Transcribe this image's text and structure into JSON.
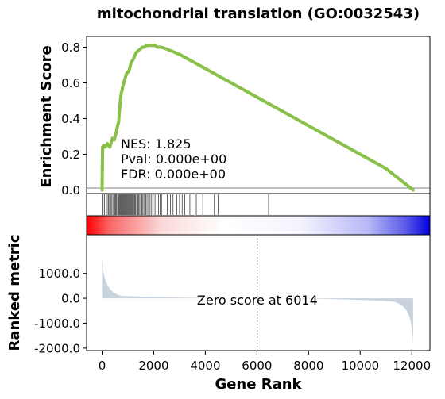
{
  "chart_data": {
    "type": "gsea",
    "title": "mitochondrial translation (GO:0032543)",
    "x_range": [
      -600,
      12700
    ],
    "x_ticks": [
      0,
      2000,
      4000,
      6000,
      8000,
      10000,
      12000
    ],
    "x_tick_labels": [
      "0",
      "2000",
      "4000",
      "6000",
      "8000",
      "10000",
      "12000"
    ],
    "xlabel": "Gene Rank",
    "enrichment": {
      "ylabel": "Enrichment Score",
      "y_range": [
        -0.02,
        0.86
      ],
      "y_ticks": [
        0.0,
        0.2,
        0.4,
        0.6,
        0.8
      ],
      "y_tick_labels": [
        "0.0",
        "0.2",
        "0.4",
        "0.6",
        "0.8"
      ],
      "color": "#88c048",
      "series": {
        "x": [
          0,
          20,
          60,
          120,
          200,
          300,
          400,
          470,
          520,
          560,
          600,
          640,
          660,
          690,
          720,
          740,
          780,
          800,
          840,
          880,
          920,
          950,
          980,
          1010,
          1050,
          1100,
          1150,
          1200,
          1260,
          1320,
          1400,
          1480,
          1560,
          1640,
          1720,
          1800,
          1880,
          1960,
          2040,
          2150,
          2300,
          2500,
          3000,
          4000,
          5000,
          6000,
          7000,
          8000,
          9000,
          10000,
          11000,
          12050
        ],
        "y": [
          0.0,
          0.24,
          0.25,
          0.24,
          0.26,
          0.24,
          0.29,
          0.28,
          0.31,
          0.33,
          0.36,
          0.38,
          0.42,
          0.47,
          0.52,
          0.54,
          0.56,
          0.58,
          0.6,
          0.62,
          0.64,
          0.65,
          0.66,
          0.66,
          0.67,
          0.7,
          0.72,
          0.73,
          0.75,
          0.77,
          0.78,
          0.79,
          0.8,
          0.8,
          0.81,
          0.81,
          0.81,
          0.81,
          0.81,
          0.8,
          0.8,
          0.79,
          0.76,
          0.68,
          0.6,
          0.52,
          0.44,
          0.36,
          0.28,
          0.2,
          0.12,
          0.0
        ]
      },
      "stats": [
        "NES: 1.825",
        "Pval: 0.000e+00",
        "FDR: 0.000e+00"
      ]
    },
    "hits": [
      0,
      40,
      90,
      150,
      200,
      250,
      290,
      330,
      380,
      420,
      460,
      500,
      530,
      560,
      600,
      630,
      660,
      690,
      720,
      750,
      780,
      810,
      840,
      870,
      900,
      930,
      960,
      990,
      1020,
      1050,
      1080,
      1110,
      1140,
      1170,
      1200,
      1240,
      1270,
      1300,
      1340,
      1380,
      1420,
      1460,
      1500,
      1540,
      1580,
      1620,
      1660,
      1700,
      1740,
      1800,
      1860,
      1920,
      1980,
      2050,
      2120,
      2180,
      2250,
      2300,
      2400,
      2520,
      2650,
      2750,
      2900,
      3000,
      3100,
      3200,
      3400,
      3600,
      3650,
      3900,
      4350,
      4500,
      6450
    ],
    "ranked_metric": {
      "ylabel": "Ranked metric",
      "y_range": [
        -2100,
        2550
      ],
      "y_ticks": [
        1000,
        0,
        -1000,
        -2000
      ],
      "y_tick_labels": [
        "1000.0",
        "0.0",
        "-1000.0",
        "-2000.0"
      ],
      "zero_cross": 6014,
      "annotation": "Zero score at 6014",
      "color": "#c8d3de",
      "x_min": 0,
      "x_max": 12050,
      "top_value": 1700,
      "bottom_value": -1900
    }
  }
}
